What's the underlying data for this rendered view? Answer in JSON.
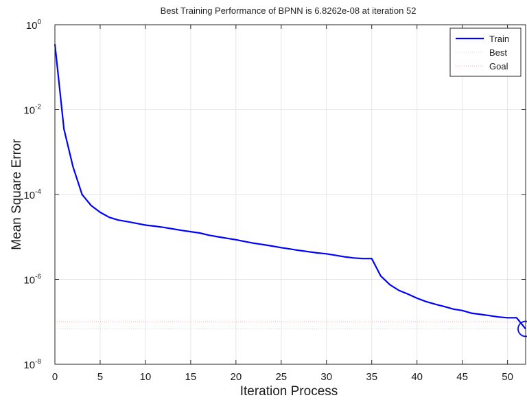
{
  "chart_data": {
    "type": "line",
    "title": "Best Training Performance of BPNN is 6.8262e-08 at iteration 52",
    "xlabel": "Iteration Process",
    "ylabel": "Mean Square Error",
    "xlim": [
      0,
      52
    ],
    "ylim": [
      1e-08,
      1
    ],
    "yscale": "log",
    "grid": true,
    "legend_position": "top-right",
    "x_ticks": [
      0,
      5,
      10,
      15,
      20,
      25,
      30,
      35,
      40,
      45,
      50
    ],
    "y_ticks": [
      {
        "base": "10",
        "exp": "0",
        "value": 1
      },
      {
        "base": "10",
        "exp": "-2",
        "value": 0.01
      },
      {
        "base": "10",
        "exp": "-4",
        "value": 0.0001
      },
      {
        "base": "10",
        "exp": "-6",
        "value": 1e-06
      },
      {
        "base": "10",
        "exp": "-8",
        "value": 1e-08
      }
    ],
    "series": [
      {
        "name": "Train",
        "color": "#0000ff",
        "style": "solid",
        "x": [
          0,
          1,
          2,
          3,
          4,
          5,
          6,
          7,
          8,
          9,
          10,
          11,
          12,
          13,
          14,
          15,
          16,
          17,
          18,
          19,
          20,
          21,
          22,
          23,
          24,
          25,
          26,
          27,
          28,
          29,
          30,
          31,
          32,
          33,
          34,
          35,
          36,
          37,
          38,
          39,
          40,
          41,
          42,
          43,
          44,
          45,
          46,
          47,
          48,
          49,
          50,
          51,
          52
        ],
        "y": [
          0.35,
          0.0035,
          0.00045,
          0.0001,
          5.5e-05,
          3.8e-05,
          2.9e-05,
          2.5e-05,
          2.3e-05,
          2.1e-05,
          1.9e-05,
          1.8e-05,
          1.68e-05,
          1.55e-05,
          1.43e-05,
          1.33e-05,
          1.24e-05,
          1.1e-05,
          1.01e-05,
          9.3e-06,
          8.6e-06,
          7.8e-06,
          7.1e-06,
          6.6e-06,
          6.1e-06,
          5.6e-06,
          5.2e-06,
          4.8e-06,
          4.5e-06,
          4.2e-06,
          4e-06,
          3.7e-06,
          3.4e-06,
          3.2e-06,
          3.1e-06,
          3.1e-06,
          1.2e-06,
          7.5e-07,
          5.5e-07,
          4.5e-07,
          3.6e-07,
          3e-07,
          2.6e-07,
          2.3e-07,
          2e-07,
          1.85e-07,
          1.6e-07,
          1.5e-07,
          1.4e-07,
          1.3e-07,
          1.25e-07,
          1.25e-07,
          6.8e-08
        ]
      },
      {
        "name": "Best",
        "color": "#d9d9d9",
        "style": "dotted"
      },
      {
        "name": "Goal",
        "color": "#f4a8a8",
        "style": "dotted",
        "value": 1e-07
      }
    ],
    "best_point": {
      "x": 52,
      "y": 6.8262e-08
    }
  }
}
